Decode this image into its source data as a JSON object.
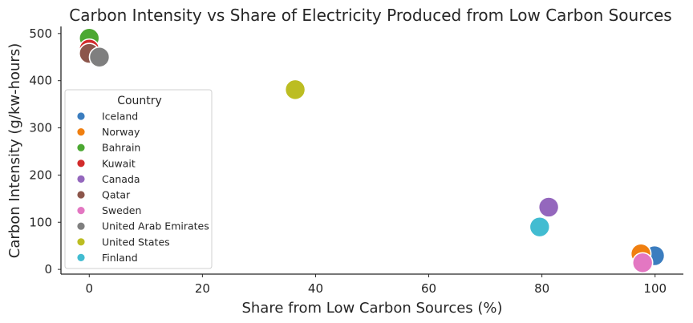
{
  "chart_data": {
    "type": "scatter",
    "title": "Carbon Intensity vs Share of Electricity Produced from Low Carbon Sources",
    "xlabel": "Share from Low Carbon Sources (%)",
    "ylabel": "Carbon Intensity (g/kw-hours)",
    "xlim": [
      -5,
      105
    ],
    "ylim": [
      -10,
      515
    ],
    "xticks": [
      0,
      20,
      40,
      60,
      80,
      100
    ],
    "yticks": [
      0,
      100,
      200,
      300,
      400,
      500
    ],
    "grid": false,
    "legend": {
      "title": "Country",
      "placement": "center-left"
    },
    "series": [
      {
        "name": "Iceland",
        "color": "#3b7dbf",
        "x": [
          99.9
        ],
        "y": [
          29
        ]
      },
      {
        "name": "Norway",
        "color": "#f07f10",
        "x": [
          97.5
        ],
        "y": [
          33
        ]
      },
      {
        "name": "Bahrain",
        "color": "#4ca832",
        "x": [
          0
        ],
        "y": [
          490
        ]
      },
      {
        "name": "Kuwait",
        "color": "#d22b2b",
        "x": [
          0
        ],
        "y": [
          467
        ]
      },
      {
        "name": "Canada",
        "color": "#9467bd",
        "x": [
          81.2
        ],
        "y": [
          132
        ]
      },
      {
        "name": "Qatar",
        "color": "#8c564b",
        "x": [
          0
        ],
        "y": [
          458
        ]
      },
      {
        "name": "Sweden",
        "color": "#e377c2",
        "x": [
          97.8
        ],
        "y": [
          14
        ]
      },
      {
        "name": "United Arab Emirates",
        "color": "#7f7f7f",
        "x": [
          1.8
        ],
        "y": [
          450
        ]
      },
      {
        "name": "United States",
        "color": "#bcbd22",
        "x": [
          36.4
        ],
        "y": [
          381
        ]
      },
      {
        "name": "Finland",
        "color": "#42bcd1",
        "x": [
          79.6
        ],
        "y": [
          90
        ]
      }
    ]
  }
}
